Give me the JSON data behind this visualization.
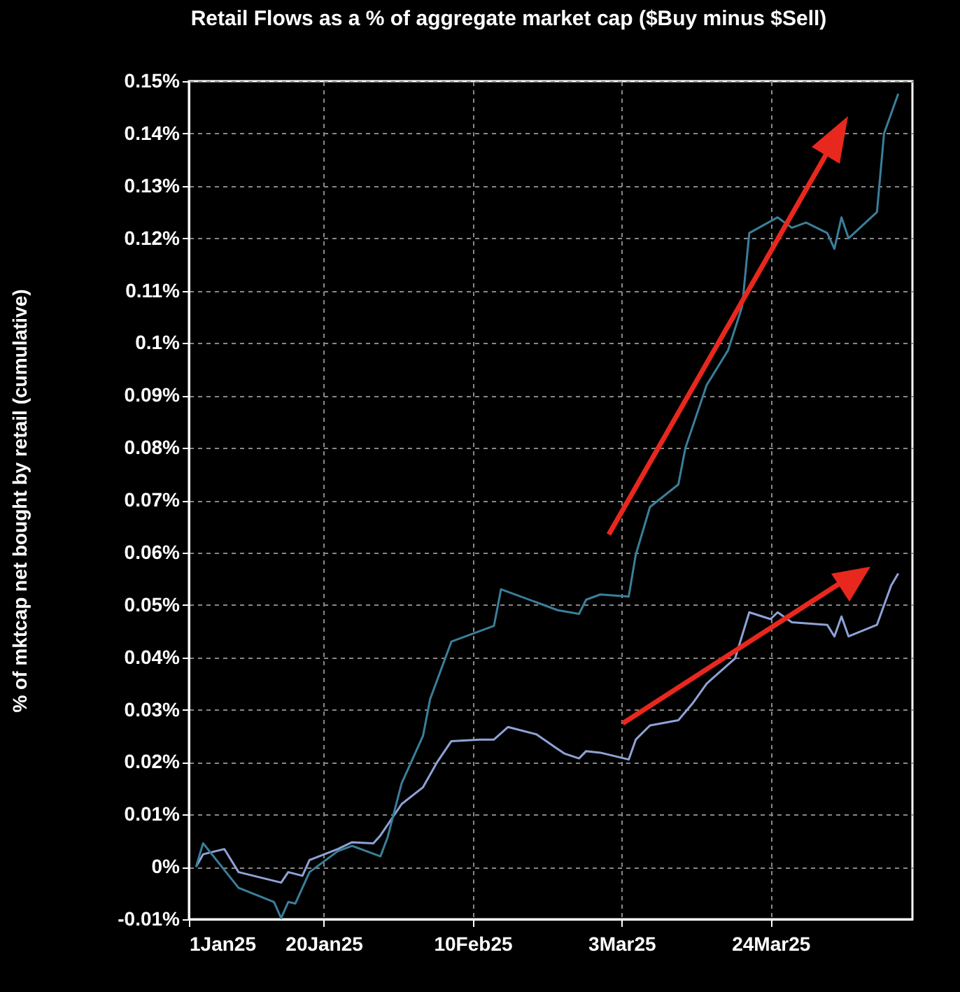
{
  "chart_data": {
    "type": "line",
    "title": "Retail Flows as a % of aggregate market cap ($Buy minus $Sell)",
    "ylabel": "% of mktcap net bought by retail (cumulative)",
    "grid": true,
    "line_style": "solid",
    "xlim": [
      "2025-01-01",
      "2025-04-13"
    ],
    "xticks": [
      {
        "value": "2025-01-01",
        "label": "1Jan25"
      },
      {
        "value": "2025-01-20",
        "label": "20Jan25"
      },
      {
        "value": "2025-02-10",
        "label": "10Feb25"
      },
      {
        "value": "2025-03-03",
        "label": "3Mar25"
      },
      {
        "value": "2025-03-24",
        "label": "24Mar25"
      }
    ],
    "ylim": [
      -0.01,
      0.15
    ],
    "yticks": [
      {
        "value": -0.01,
        "label": "-0.01%"
      },
      {
        "value": 0,
        "label": "0%"
      },
      {
        "value": 0.01,
        "label": "0.01%"
      },
      {
        "value": 0.02,
        "label": "0.02%"
      },
      {
        "value": 0.03,
        "label": "0.03%"
      },
      {
        "value": 0.04,
        "label": "0.04%"
      },
      {
        "value": 0.05,
        "label": "0.05%"
      },
      {
        "value": 0.06,
        "label": "0.06%"
      },
      {
        "value": 0.07,
        "label": "0.07%"
      },
      {
        "value": 0.08,
        "label": "0.08%"
      },
      {
        "value": 0.09,
        "label": "0.09%"
      },
      {
        "value": 0.1,
        "label": "0.1%"
      },
      {
        "value": 0.11,
        "label": "0.11%"
      },
      {
        "value": 0.12,
        "label": "0.12%"
      },
      {
        "value": 0.13,
        "label": "0.13%"
      },
      {
        "value": 0.14,
        "label": "0.14%"
      },
      {
        "value": 0.15,
        "label": "0.15%"
      }
    ],
    "series": [
      {
        "color": "#8fa3d6",
        "x": [
          "2025-01-02",
          "2025-01-03",
          "2025-01-06",
          "2025-01-08",
          "2025-01-14",
          "2025-01-15",
          "2025-01-17",
          "2025-01-18",
          "2025-01-22",
          "2025-01-24",
          "2025-01-27",
          "2025-01-28",
          "2025-01-31",
          "2025-02-03",
          "2025-02-05",
          "2025-02-07",
          "2025-02-11",
          "2025-02-13",
          "2025-02-15",
          "2025-02-19",
          "2025-02-22",
          "2025-02-23",
          "2025-02-25",
          "2025-02-26",
          "2025-02-28",
          "2025-03-04",
          "2025-03-05",
          "2025-03-07",
          "2025-03-11",
          "2025-03-13",
          "2025-03-15",
          "2025-03-19",
          "2025-03-21",
          "2025-03-24",
          "2025-03-25",
          "2025-03-27",
          "2025-04-01",
          "2025-04-02",
          "2025-04-03",
          "2025-04-04",
          "2025-04-08",
          "2025-04-10",
          "2025-04-11"
        ],
        "values": [
          0.0,
          0.0024,
          0.0034,
          -0.001,
          -0.003,
          -0.001,
          -0.0017,
          0.0013,
          0.0034,
          0.0047,
          0.0045,
          0.006,
          0.012,
          0.0152,
          0.02,
          0.024,
          0.0243,
          0.0243,
          0.0267,
          0.0253,
          0.0225,
          0.0216,
          0.0207,
          0.0221,
          0.0218,
          0.0205,
          0.0243,
          0.027,
          0.028,
          0.0312,
          0.035,
          0.0398,
          0.0486,
          0.0473,
          0.0486,
          0.0467,
          0.0462,
          0.044,
          0.0478,
          0.044,
          0.0462,
          0.0537,
          0.056
        ]
      },
      {
        "color": "#3b7f9a",
        "x": [
          "2025-01-02",
          "2025-01-03",
          "2025-01-08",
          "2025-01-13",
          "2025-01-14",
          "2025-01-15",
          "2025-01-16",
          "2025-01-18",
          "2025-01-22",
          "2025-01-24",
          "2025-01-28",
          "2025-01-29",
          "2025-01-31",
          "2025-02-03",
          "2025-02-04",
          "2025-02-07",
          "2025-02-11",
          "2025-02-13",
          "2025-02-14",
          "2025-02-19",
          "2025-02-22",
          "2025-02-25",
          "2025-02-26",
          "2025-02-28",
          "2025-03-04",
          "2025-03-05",
          "2025-03-07",
          "2025-03-11",
          "2025-03-12",
          "2025-03-14",
          "2025-03-15",
          "2025-03-18",
          "2025-03-20",
          "2025-03-21",
          "2025-03-25",
          "2025-03-27",
          "2025-03-29",
          "2025-04-01",
          "2025-04-02",
          "2025-04-03",
          "2025-04-04",
          "2025-04-08",
          "2025-04-09",
          "2025-04-11"
        ],
        "values": [
          0.0,
          0.0045,
          -0.004,
          -0.0067,
          -0.0098,
          -0.0067,
          -0.007,
          -0.001,
          0.003,
          0.004,
          0.002,
          0.0056,
          0.016,
          0.025,
          0.032,
          0.043,
          0.045,
          0.046,
          0.053,
          0.0505,
          0.049,
          0.0483,
          0.051,
          0.052,
          0.0516,
          0.0596,
          0.0687,
          0.073,
          0.08,
          0.088,
          0.092,
          0.0986,
          0.107,
          0.121,
          0.124,
          0.122,
          0.123,
          0.121,
          0.118,
          0.124,
          0.12,
          0.125,
          0.14,
          0.1476
        ]
      }
    ]
  }
}
